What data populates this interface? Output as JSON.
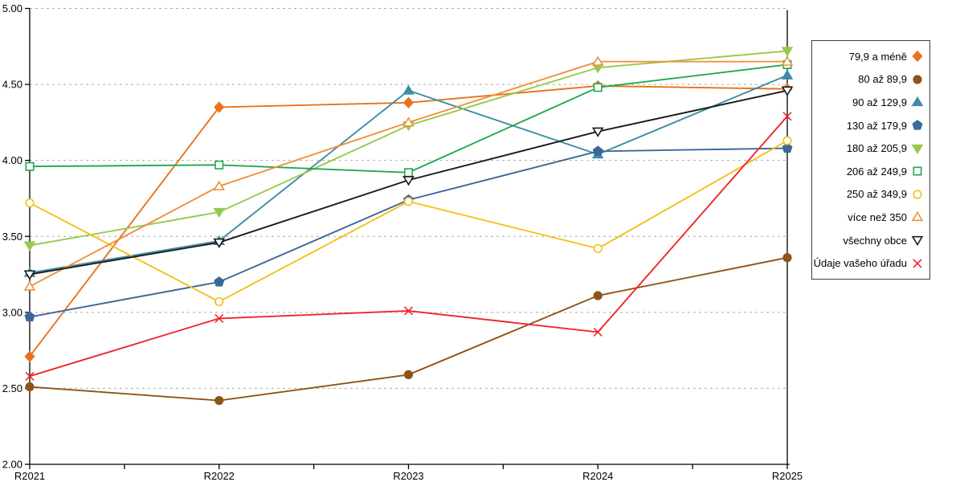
{
  "chart_data": {
    "type": "line",
    "title": "",
    "xlabel": "",
    "ylabel": "",
    "x_categories": [
      "R2021",
      "R2022",
      "R2023",
      "R2024",
      "R2025"
    ],
    "ylim": [
      2.0,
      5.0
    ],
    "y_tick_step": 0.5,
    "y_tick_labels": [
      "2.00",
      "2.50",
      "3.00",
      "3.50",
      "4.00",
      "4.50",
      "5.00"
    ],
    "grid": "horizontal-dashed",
    "grid_color": "#ababab",
    "axis_color": "#000000",
    "legend_position": "right-outside",
    "series": [
      {
        "name": "79,9 a méně",
        "color": "#e8731e",
        "marker": "diamond",
        "fill": "solid",
        "values": [
          2.71,
          4.35,
          4.38,
          4.49,
          4.47
        ]
      },
      {
        "name": "80 až 89,9",
        "color": "#8f5318",
        "marker": "circle",
        "fill": "solid",
        "values": [
          2.51,
          2.42,
          2.59,
          3.11,
          3.36
        ]
      },
      {
        "name": "90 až 129,9",
        "color": "#3f8ca8",
        "marker": "triangle-up",
        "fill": "solid",
        "values": [
          3.26,
          3.47,
          4.46,
          4.04,
          4.56
        ]
      },
      {
        "name": "130 až 179,9",
        "color": "#3c6899",
        "marker": "pentagon",
        "fill": "solid",
        "values": [
          2.97,
          3.2,
          3.74,
          4.06,
          4.08
        ]
      },
      {
        "name": "180 až 205,9",
        "color": "#97c94f",
        "marker": "triangle-down",
        "fill": "solid",
        "values": [
          3.44,
          3.66,
          4.23,
          4.61,
          4.72
        ]
      },
      {
        "name": "206 až 249,9",
        "color": "#21a94f",
        "marker": "square",
        "fill": "open",
        "values": [
          3.96,
          3.97,
          3.92,
          4.48,
          4.63
        ]
      },
      {
        "name": "250 až 349,9",
        "color": "#f2c118",
        "marker": "circle",
        "fill": "open",
        "values": [
          3.72,
          3.07,
          3.73,
          3.42,
          4.13
        ]
      },
      {
        "name": "více než 350",
        "color": "#f1903c",
        "marker": "triangle-up",
        "fill": "open",
        "values": [
          3.17,
          3.83,
          4.25,
          4.65,
          4.65
        ]
      },
      {
        "name": "všechny obce",
        "color": "#1a1a1a",
        "marker": "triangle-down",
        "fill": "open",
        "values": [
          3.25,
          3.46,
          3.87,
          4.19,
          4.46
        ]
      },
      {
        "name": "Údaje vašeho úřadu",
        "color": "#ef262d",
        "marker": "x",
        "fill": "line",
        "values": [
          2.58,
          2.96,
          3.01,
          2.87,
          4.29
        ]
      }
    ]
  }
}
